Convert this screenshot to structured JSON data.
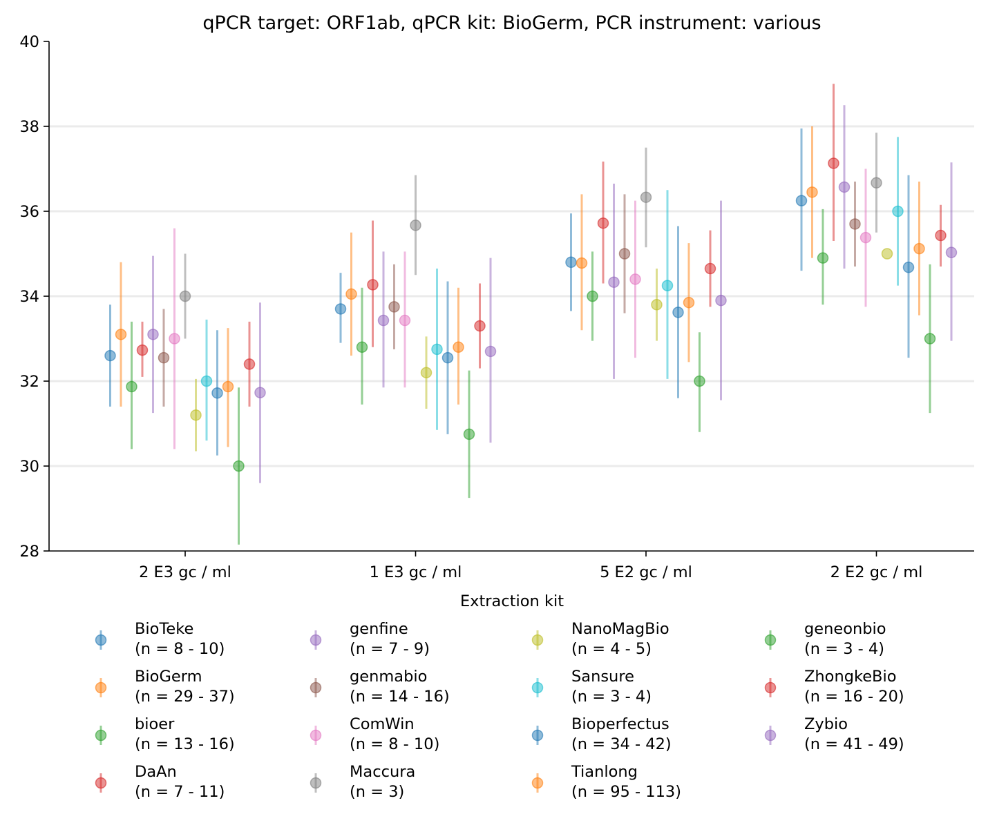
{
  "chart_data": {
    "type": "scatter",
    "title": "qPCR target: ORF1ab, qPCR kit: BioGerm, PCR instrument: various",
    "xlabel": "Extraction kit",
    "ylabel": "",
    "ylim": [
      28,
      40
    ],
    "yticks": [
      28,
      30,
      32,
      34,
      36,
      38,
      40
    ],
    "grid": "horizontal",
    "categories": [
      "2 E3 gc / ml",
      "1 E3 gc / ml",
      "5 E2 gc / ml",
      "2 E2 gc / ml"
    ],
    "legend_placement": "below",
    "series": [
      {
        "name": "BioTeke",
        "n": "(n = 8 - 10)",
        "color": "#1f77b4",
        "values": [
          32.6,
          33.7,
          34.8,
          36.25
        ],
        "low": [
          31.4,
          32.9,
          33.65,
          34.6
        ],
        "high": [
          33.8,
          34.55,
          35.95,
          37.95
        ]
      },
      {
        "name": "BioGerm",
        "n": "(n = 29 - 37)",
        "color": "#ff7f0e",
        "values": [
          33.1,
          34.05,
          34.78,
          36.45
        ],
        "low": [
          31.4,
          32.6,
          33.2,
          34.9
        ],
        "high": [
          34.8,
          35.5,
          36.4,
          38.0
        ]
      },
      {
        "name": "bioer",
        "n": "(n = 13 - 16)",
        "color": "#2ca02c",
        "values": [
          31.87,
          32.8,
          34.0,
          34.9
        ],
        "low": [
          30.4,
          31.45,
          32.95,
          33.8
        ],
        "high": [
          33.4,
          34.2,
          35.05,
          36.05
        ]
      },
      {
        "name": "DaAn",
        "n": "(n = 7 - 11)",
        "color": "#d62728",
        "values": [
          32.73,
          34.27,
          35.72,
          37.13
        ],
        "low": [
          32.1,
          32.8,
          34.3,
          35.3
        ],
        "high": [
          33.4,
          35.78,
          37.17,
          39.0
        ]
      },
      {
        "name": "genfine",
        "n": "(n = 7 - 9)",
        "color": "#9467bd",
        "values": [
          33.1,
          33.43,
          34.33,
          36.57
        ],
        "low": [
          31.25,
          31.85,
          32.05,
          34.65
        ],
        "high": [
          34.95,
          35.05,
          36.65,
          38.5
        ]
      },
      {
        "name": "genmabio",
        "n": "(n = 14 - 16)",
        "color": "#8c564b",
        "values": [
          32.55,
          33.75,
          35.0,
          35.7
        ],
        "low": [
          31.4,
          32.75,
          33.6,
          34.7
        ],
        "high": [
          33.7,
          34.75,
          36.4,
          36.7
        ]
      },
      {
        "name": "ComWin",
        "n": "(n = 8 - 10)",
        "color": "#e377c2",
        "values": [
          33.0,
          33.43,
          34.4,
          35.38
        ],
        "low": [
          30.4,
          31.85,
          32.55,
          33.75
        ],
        "high": [
          35.6,
          35.05,
          36.25,
          37.0
        ]
      },
      {
        "name": "Maccura",
        "n": "(n = 3)",
        "color": "#7f7f7f",
        "values": [
          34.0,
          35.67,
          36.33,
          36.67
        ],
        "low": [
          33.0,
          34.5,
          35.15,
          35.5
        ],
        "high": [
          35.0,
          36.85,
          37.5,
          37.85
        ]
      },
      {
        "name": "NanoMagBio",
        "n": "(n = 4 - 5)",
        "color": "#bcbd22",
        "values": [
          31.2,
          32.2,
          33.8,
          35.0
        ],
        "low": [
          30.35,
          31.35,
          32.95,
          35.0
        ],
        "high": [
          32.05,
          33.05,
          34.65,
          35.0
        ]
      },
      {
        "name": "Sansure",
        "n": "(n = 3 - 4)",
        "color": "#17becf",
        "values": [
          32.0,
          32.75,
          34.25,
          36.0
        ],
        "low": [
          30.6,
          30.85,
          32.05,
          34.25
        ],
        "high": [
          33.45,
          34.65,
          36.5,
          37.75
        ]
      },
      {
        "name": "Bioperfectus",
        "n": "(n = 34 - 42)",
        "color": "#1f77b4",
        "values": [
          31.72,
          32.55,
          33.62,
          34.68
        ],
        "low": [
          30.25,
          30.75,
          31.6,
          32.55
        ],
        "high": [
          33.2,
          34.35,
          35.65,
          36.85
        ]
      },
      {
        "name": "Tianlong",
        "n": "(n = 95 - 113)",
        "color": "#ff7f0e",
        "values": [
          31.87,
          32.8,
          33.85,
          35.12
        ],
        "low": [
          30.45,
          31.45,
          32.45,
          33.55
        ],
        "high": [
          33.25,
          34.2,
          35.25,
          36.7
        ]
      },
      {
        "name": "geneonbio",
        "n": "(n = 3 - 4)",
        "color": "#2ca02c",
        "values": [
          30.0,
          30.75,
          32.0,
          33.0
        ],
        "low": [
          28.15,
          29.25,
          30.8,
          31.25
        ],
        "high": [
          31.85,
          32.25,
          33.15,
          34.75
        ]
      },
      {
        "name": "ZhongkeBio",
        "n": "(n = 16 - 20)",
        "color": "#d62728",
        "values": [
          32.4,
          33.3,
          34.65,
          35.43
        ],
        "low": [
          31.4,
          32.3,
          33.75,
          34.7
        ],
        "high": [
          33.4,
          34.3,
          35.55,
          36.15
        ]
      },
      {
        "name": "Zybio",
        "n": "(n = 41 - 49)",
        "color": "#9467bd",
        "values": [
          31.73,
          32.7,
          33.9,
          35.03
        ],
        "low": [
          29.6,
          30.55,
          31.55,
          32.95
        ],
        "high": [
          33.85,
          34.9,
          36.25,
          37.15
        ]
      }
    ]
  }
}
